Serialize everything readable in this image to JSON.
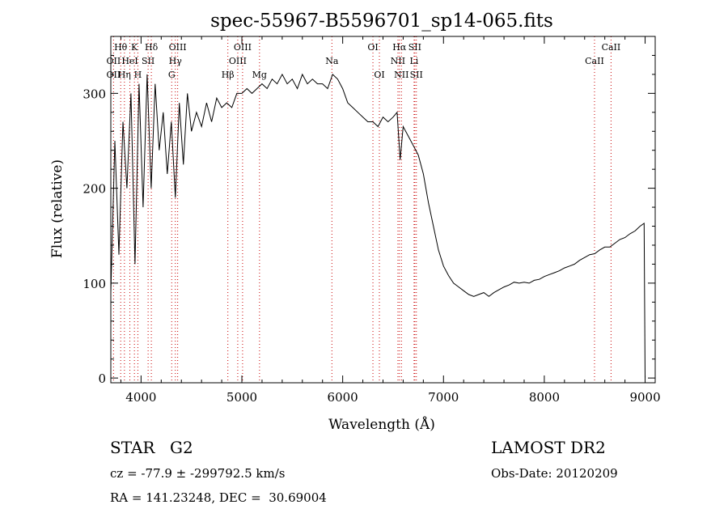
{
  "chart_data": {
    "type": "line",
    "title": "spec-55967-B5596701_sp14-065.fits",
    "xlabel": "Wavelength (Å)",
    "ylabel": "Flux (relative)",
    "xlim": [
      3700,
      9100
    ],
    "ylim": [
      -5,
      360
    ],
    "xticks": [
      4000,
      5000,
      6000,
      7000,
      8000,
      9000
    ],
    "yticks": [
      0,
      100,
      200,
      300
    ],
    "grid": false,
    "series": [
      {
        "x": [
          3700,
          3740,
          3780,
          3820,
          3860,
          3900,
          3940,
          3980,
          4020,
          4060,
          4100,
          4140,
          4180,
          4220,
          4260,
          4300,
          4340,
          4380,
          4420,
          4460,
          4500,
          4550,
          4600,
          4650,
          4700,
          4750,
          4800,
          4850,
          4900,
          4950,
          5000,
          5050,
          5100,
          5150,
          5200,
          5250,
          5300,
          5350,
          5400,
          5450,
          5500,
          5550,
          5600,
          5650,
          5700,
          5750,
          5800,
          5850,
          5900,
          5950,
          6000,
          6050,
          6100,
          6150,
          6200,
          6250,
          6300,
          6350,
          6400,
          6450,
          6500,
          6540,
          6570,
          6600,
          6650,
          6700,
          6750,
          6800,
          6850,
          6900,
          6950,
          7000,
          7050,
          7100,
          7150,
          7200,
          7250,
          7300,
          7350,
          7400,
          7450,
          7500,
          7550,
          7600,
          7650,
          7700,
          7750,
          7800,
          7850,
          7900,
          7950,
          8000,
          8050,
          8100,
          8150,
          8200,
          8250,
          8300,
          8350,
          8400,
          8450,
          8500,
          8550,
          8600,
          8650,
          8700,
          8750,
          8800,
          8850,
          8900,
          8950,
          8990,
          9000
        ],
        "values": [
          90,
          250,
          130,
          270,
          200,
          300,
          120,
          310,
          180,
          320,
          200,
          310,
          240,
          280,
          215,
          270,
          190,
          290,
          225,
          300,
          260,
          280,
          265,
          290,
          270,
          295,
          285,
          290,
          285,
          300,
          300,
          305,
          300,
          305,
          310,
          305,
          315,
          310,
          320,
          310,
          315,
          305,
          320,
          310,
          315,
          310,
          310,
          305,
          320,
          315,
          305,
          290,
          285,
          280,
          275,
          270,
          270,
          265,
          275,
          270,
          275,
          280,
          230,
          265,
          255,
          245,
          235,
          215,
          185,
          160,
          135,
          118,
          108,
          100,
          96,
          92,
          88,
          86,
          88,
          90,
          86,
          90,
          93,
          96,
          98,
          101,
          100,
          101,
          100,
          103,
          104,
          107,
          109,
          111,
          113,
          116,
          118,
          120,
          124,
          127,
          130,
          131,
          135,
          138,
          138,
          142,
          146,
          148,
          152,
          155,
          160,
          163,
          0
        ]
      }
    ],
    "lines": [
      {
        "label": "Hθ",
        "x": 3798,
        "row": 1
      },
      {
        "label": "OII",
        "x": 3727,
        "row": 2
      },
      {
        "label": "OII",
        "x": 3727,
        "row": 3
      },
      {
        "label": "HeI",
        "x": 3889,
        "row": 2
      },
      {
        "label": "Hη",
        "x": 3835,
        "row": 3
      },
      {
        "label": "K",
        "x": 3934,
        "row": 1
      },
      {
        "label": "H",
        "x": 3968,
        "row": 3
      },
      {
        "label": "SII",
        "x": 4070,
        "row": 2
      },
      {
        "label": "Hδ",
        "x": 4102,
        "row": 1
      },
      {
        "label": "OIII",
        "x": 4363,
        "row": 1
      },
      {
        "label": "Hγ",
        "x": 4340,
        "row": 2
      },
      {
        "label": "G",
        "x": 4304,
        "row": 3
      },
      {
        "label": "Hβ",
        "x": 4861,
        "row": 3
      },
      {
        "label": "OIII",
        "x": 5007,
        "row": 1
      },
      {
        "label": "OIII",
        "x": 4959,
        "row": 2
      },
      {
        "label": "Mg",
        "x": 5175,
        "row": 3
      },
      {
        "label": "Na",
        "x": 5893,
        "row": 2
      },
      {
        "label": "OI",
        "x": 6300,
        "row": 1
      },
      {
        "label": "OI",
        "x": 6364,
        "row": 3
      },
      {
        "label": "Hα",
        "x": 6563,
        "row": 1
      },
      {
        "label": "NII",
        "x": 6548,
        "row": 2
      },
      {
        "label": "NII",
        "x": 6583,
        "row": 3
      },
      {
        "label": "SII",
        "x": 6716,
        "row": 1
      },
      {
        "label": "Li",
        "x": 6708,
        "row": 2
      },
      {
        "label": "SII",
        "x": 6731,
        "row": 3
      },
      {
        "label": "CaII",
        "x": 8662,
        "row": 1
      },
      {
        "label": "CaII",
        "x": 8498,
        "row": 2
      }
    ]
  },
  "info": {
    "object_class": "STAR",
    "subclass": "G2",
    "survey": "LAMOST DR2",
    "cz": "cz = -77.9 ± -299792.5 km/s",
    "obs_date": "Obs-Date: 20120209",
    "coords": "RA = 141.23248, DEC =  30.69004"
  },
  "colors": {
    "spectrum": "#000000",
    "line_markers": "#c80000"
  }
}
